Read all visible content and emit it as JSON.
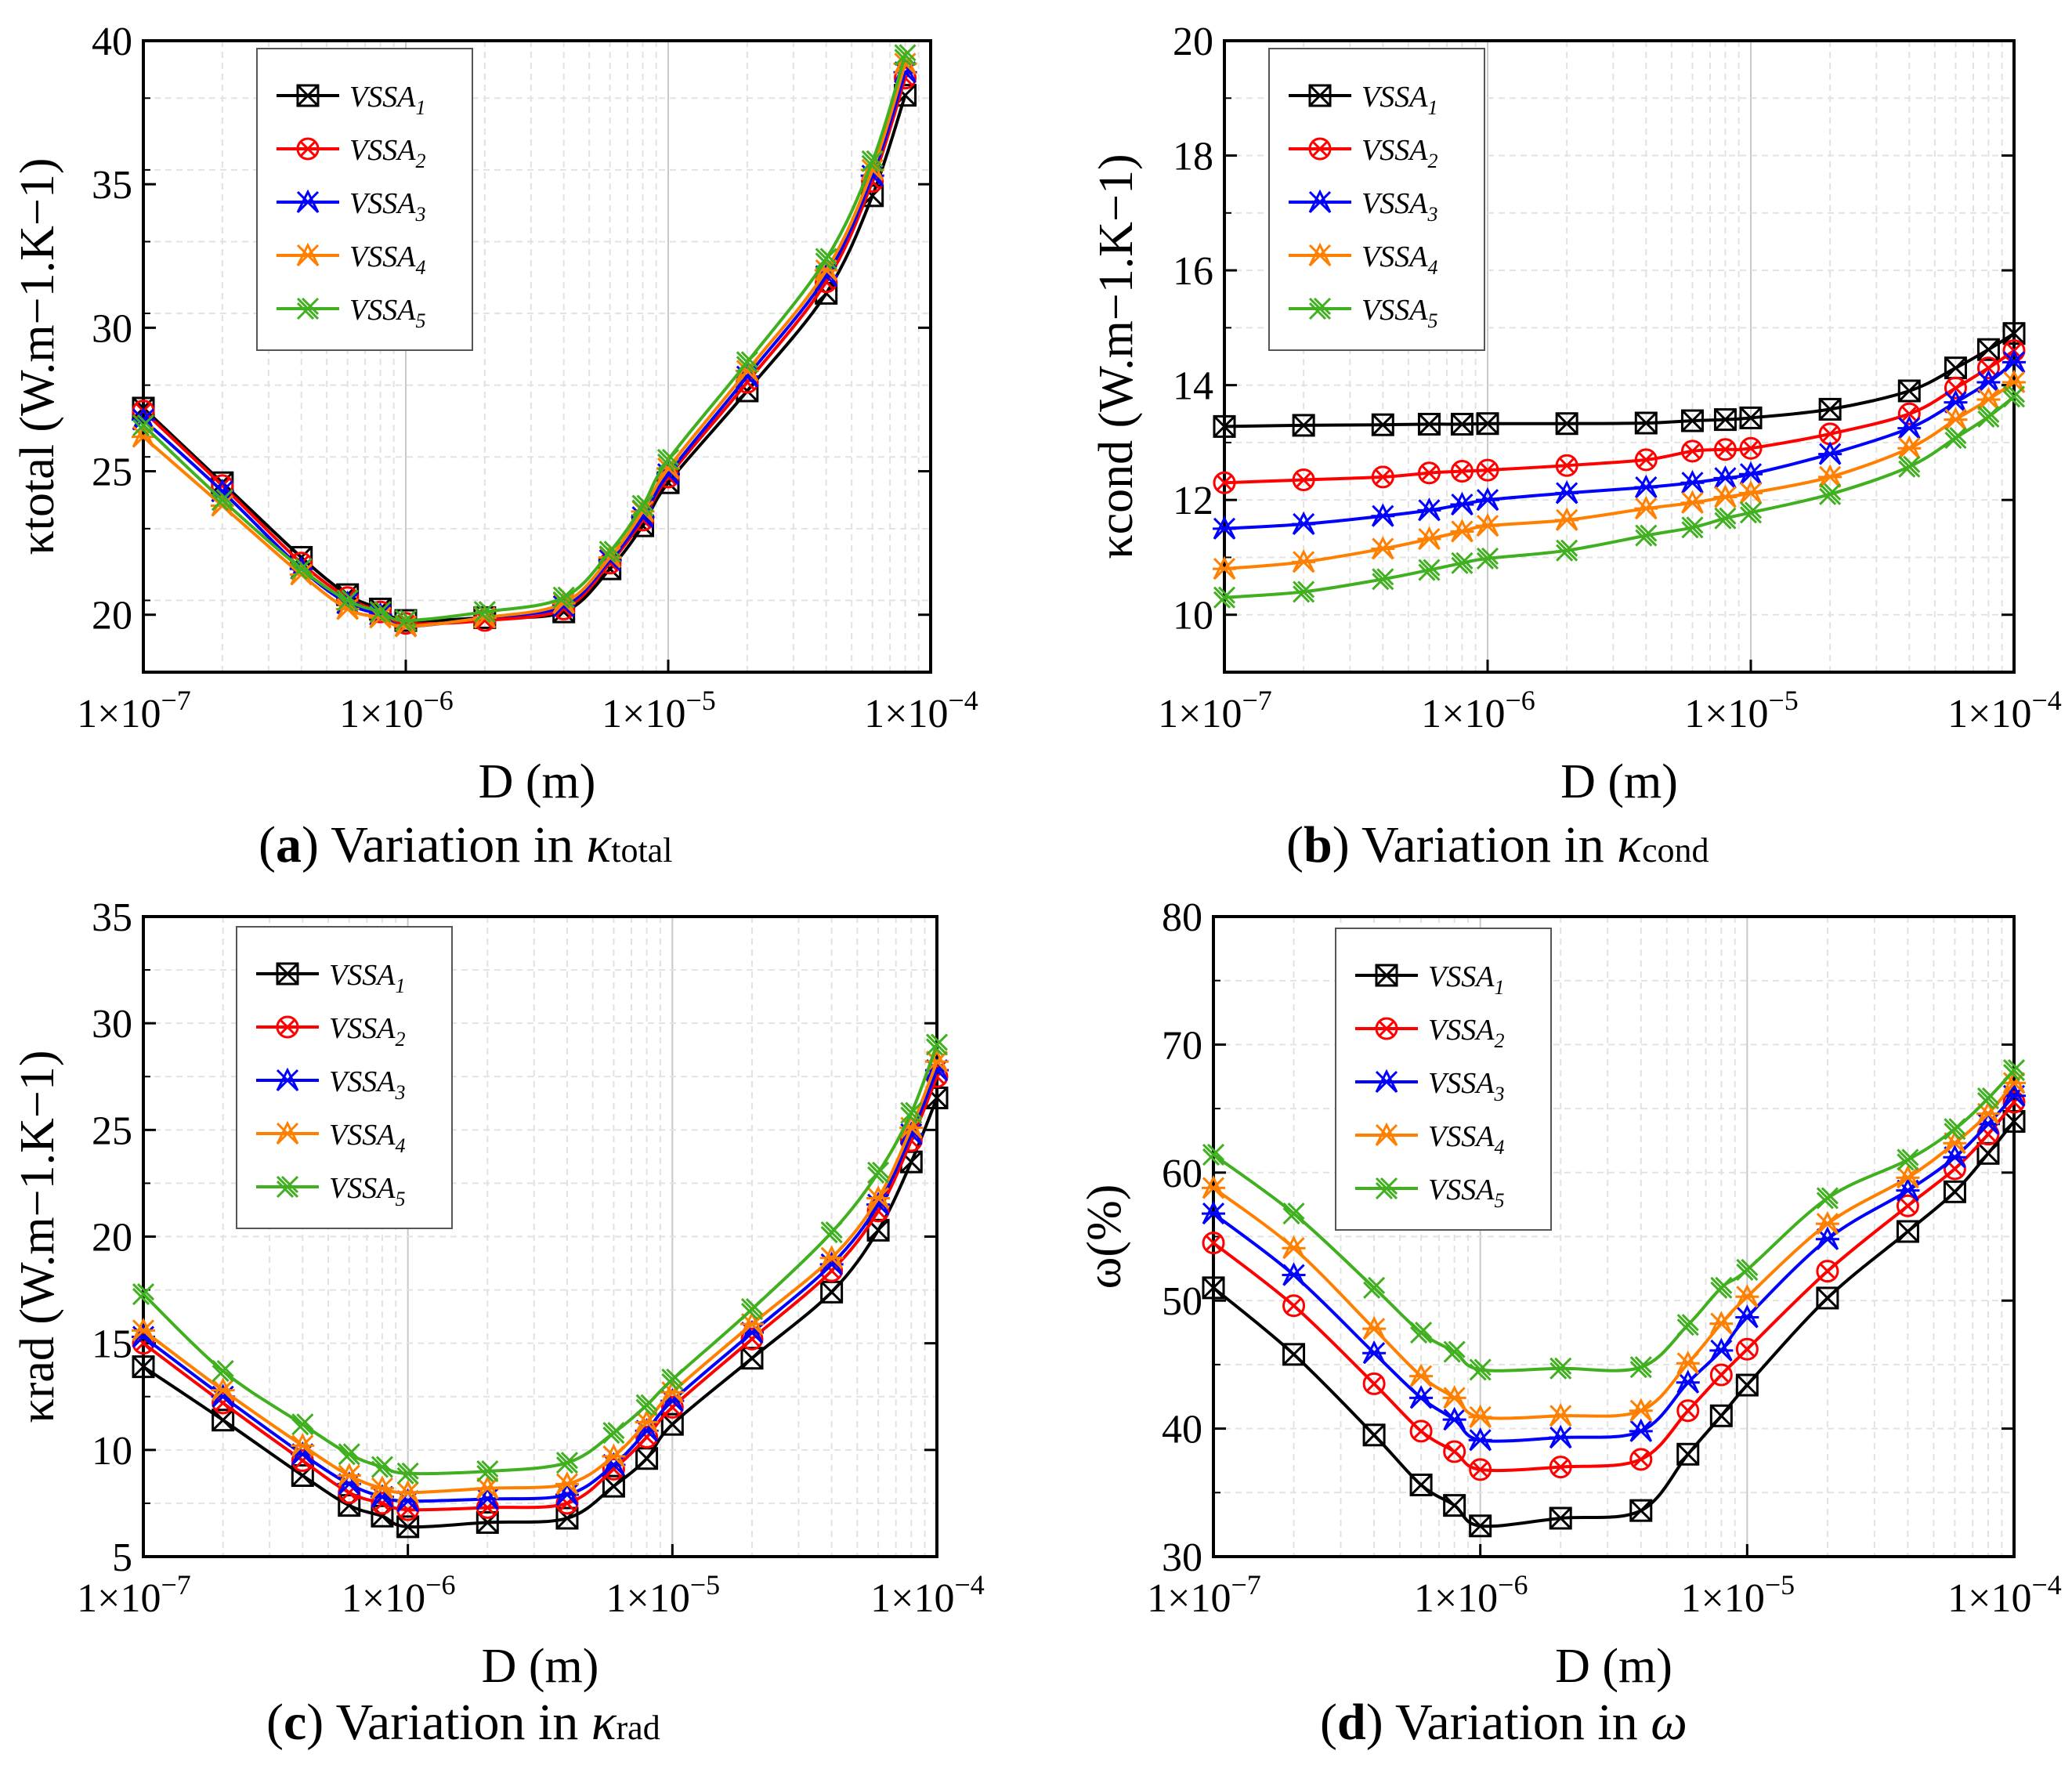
{
  "figure_captions": [
    {
      "label": "a",
      "text": " Variation in ",
      "symbol": "κ",
      "sub": "total"
    },
    {
      "label": "b",
      "text": " Variation in ",
      "symbol": "κ",
      "sub": "cond"
    },
    {
      "label": "c",
      "text": " Variation in ",
      "symbol": "κ",
      "sub": "rad"
    },
    {
      "label": "d",
      "text": " Variation in ",
      "symbol": "ω",
      "sub": ""
    }
  ],
  "series_styles": [
    {
      "name": "VSSA",
      "sub": "1",
      "color": "#000000",
      "marker": "boxx"
    },
    {
      "name": "VSSA",
      "sub": "2",
      "color": "#ff0000",
      "marker": "circx"
    },
    {
      "name": "VSSA",
      "sub": "3",
      "color": "#0000ff",
      "marker": "star"
    },
    {
      "name": "VSSA",
      "sub": "4",
      "color": "#ff8000",
      "marker": "star"
    },
    {
      "name": "VSSA",
      "sub": "5",
      "color": "#40b020",
      "marker": "xx"
    }
  ],
  "chart_data": [
    {
      "type": "line",
      "panel": "a",
      "xlabel": "D (m)",
      "ylabel": "κtotal (W.m−1.K−1)",
      "xscale": "log",
      "xlim": [
        1e-07,
        0.0001
      ],
      "ylim": [
        18,
        40
      ],
      "yticks": [
        20,
        25,
        30,
        35,
        40
      ],
      "xtick_labels": [
        "1×10",
        "1×10",
        "1×10",
        "1×10"
      ],
      "xtick_exps": [
        "−7",
        "−6",
        "−5",
        "−4"
      ],
      "legend_position": "top-left",
      "x": [
        1e-07,
        2e-07,
        4e-07,
        6e-07,
        8e-07,
        1e-06,
        2e-06,
        4e-06,
        6e-06,
        8e-06,
        1e-05,
        2e-05,
        4e-05,
        6e-05,
        8e-05
      ],
      "series": [
        {
          "name": "VSSA1",
          "values": [
            27.2,
            24.6,
            22.0,
            20.7,
            20.2,
            19.8,
            19.9,
            20.1,
            21.6,
            23.1,
            24.6,
            27.8,
            31.2,
            34.6,
            38.1
          ]
        },
        {
          "name": "VSSA2",
          "values": [
            27.1,
            24.5,
            21.8,
            20.6,
            20.1,
            19.7,
            19.8,
            20.2,
            21.8,
            23.3,
            24.8,
            28.1,
            31.6,
            35.1,
            38.7
          ]
        },
        {
          "name": "VSSA3",
          "values": [
            26.8,
            24.3,
            21.6,
            20.4,
            20.0,
            19.6,
            19.9,
            20.3,
            21.9,
            23.4,
            24.9,
            28.3,
            31.8,
            35.3,
            38.9
          ]
        },
        {
          "name": "VSSA4",
          "values": [
            26.2,
            23.8,
            21.4,
            20.2,
            19.9,
            19.6,
            19.9,
            20.4,
            22.0,
            23.6,
            25.1,
            28.5,
            32.0,
            35.5,
            39.2
          ]
        },
        {
          "name": "VSSA5",
          "values": [
            26.6,
            24.0,
            21.6,
            20.5,
            20.1,
            19.8,
            20.1,
            20.6,
            22.2,
            23.8,
            25.4,
            28.8,
            32.4,
            35.8,
            39.5
          ]
        }
      ]
    },
    {
      "type": "line",
      "panel": "b",
      "xlabel": "D (m)",
      "ylabel": "κcond (W.m−1.K−1)",
      "xscale": "log",
      "xlim": [
        1e-07,
        0.0001
      ],
      "ylim": [
        9,
        20
      ],
      "yticks": [
        10,
        12,
        14,
        16,
        18,
        20
      ],
      "xtick_labels": [
        "1×10",
        "1×10",
        "1×10",
        "1×10"
      ],
      "xtick_exps": [
        "−7",
        "−6",
        "−5",
        "−4"
      ],
      "legend_position": "top-left",
      "x": [
        1e-07,
        2e-07,
        4e-07,
        6e-07,
        8e-07,
        1e-06,
        2e-06,
        4e-06,
        6e-06,
        8e-06,
        1e-05,
        2e-05,
        4e-05,
        6e-05,
        8e-05,
        0.0001
      ],
      "series": [
        {
          "name": "VSSA1",
          "values": [
            13.28,
            13.3,
            13.31,
            13.32,
            13.32,
            13.33,
            13.33,
            13.34,
            13.38,
            13.4,
            13.43,
            13.58,
            13.9,
            14.3,
            14.62,
            14.9
          ]
        },
        {
          "name": "VSSA2",
          "values": [
            12.3,
            12.35,
            12.4,
            12.47,
            12.5,
            12.52,
            12.6,
            12.7,
            12.85,
            12.88,
            12.9,
            13.15,
            13.5,
            13.95,
            14.3,
            14.6
          ]
        },
        {
          "name": "VSSA3",
          "values": [
            11.5,
            11.58,
            11.72,
            11.82,
            11.92,
            12.0,
            12.12,
            12.22,
            12.3,
            12.38,
            12.45,
            12.8,
            13.25,
            13.7,
            14.05,
            14.4
          ]
        },
        {
          "name": "VSSA4",
          "values": [
            10.8,
            10.92,
            11.15,
            11.32,
            11.45,
            11.55,
            11.65,
            11.85,
            11.95,
            12.05,
            12.12,
            12.4,
            12.9,
            13.4,
            13.75,
            14.05
          ]
        },
        {
          "name": "VSSA5",
          "values": [
            10.3,
            10.4,
            10.62,
            10.78,
            10.9,
            10.98,
            11.12,
            11.38,
            11.52,
            11.68,
            11.78,
            12.1,
            12.58,
            13.08,
            13.45,
            13.8
          ]
        }
      ]
    },
    {
      "type": "line",
      "panel": "c",
      "xlabel": "D (m)",
      "ylabel": "κrad (W.m−1.K−1)",
      "xscale": "log",
      "xlim": [
        1e-07,
        0.0001
      ],
      "ylim": [
        5,
        35
      ],
      "yticks": [
        5,
        10,
        15,
        20,
        25,
        30,
        35
      ],
      "xtick_labels": [
        "1×10",
        "1×10",
        "1×10",
        "1×10"
      ],
      "xtick_exps": [
        "−7",
        "−6",
        "−5",
        "−4"
      ],
      "legend_position": "top-left",
      "x": [
        1e-07,
        2e-07,
        4e-07,
        6e-07,
        8e-07,
        1e-06,
        2e-06,
        4e-06,
        6e-06,
        8e-06,
        1e-05,
        2e-05,
        4e-05,
        6e-05,
        8e-05,
        0.0001
      ],
      "series": [
        {
          "name": "VSSA1",
          "values": [
            13.9,
            11.4,
            8.8,
            7.4,
            6.9,
            6.4,
            6.6,
            6.8,
            8.3,
            9.6,
            11.2,
            14.3,
            17.4,
            20.3,
            23.5,
            26.5
          ]
        },
        {
          "name": "VSSA2",
          "values": [
            15.0,
            12.2,
            9.5,
            8.0,
            7.5,
            7.2,
            7.3,
            7.5,
            9.1,
            10.6,
            12.0,
            15.2,
            18.4,
            21.2,
            24.5,
            27.5
          ]
        },
        {
          "name": "VSSA3",
          "values": [
            15.3,
            12.5,
            9.8,
            8.4,
            7.8,
            7.6,
            7.7,
            7.9,
            9.3,
            10.9,
            12.3,
            15.5,
            18.7,
            21.5,
            24.8,
            27.8
          ]
        },
        {
          "name": "VSSA4",
          "values": [
            15.6,
            12.8,
            10.2,
            8.8,
            8.2,
            8.0,
            8.2,
            8.4,
            9.7,
            11.3,
            12.7,
            15.9,
            19.0,
            21.8,
            25.1,
            28.2
          ]
        },
        {
          "name": "VSSA5",
          "values": [
            17.3,
            13.7,
            11.2,
            9.8,
            9.2,
            8.9,
            9.0,
            9.4,
            10.8,
            12.1,
            13.3,
            16.6,
            20.2,
            23.0,
            25.8,
            29.0
          ]
        }
      ]
    },
    {
      "type": "line",
      "panel": "d",
      "xlabel": "D (m)",
      "ylabel": "ω(%)",
      "xscale": "log",
      "xlim": [
        1e-07,
        0.0001
      ],
      "ylim": [
        30,
        80
      ],
      "yticks": [
        30,
        40,
        50,
        60,
        70,
        80
      ],
      "xtick_labels": [
        "1×10",
        "1×10",
        "1×10",
        "1×10"
      ],
      "xtick_exps": [
        "−7",
        "−6",
        "−5",
        "−4"
      ],
      "legend_position": "top-left",
      "x": [
        1e-07,
        2e-07,
        4e-07,
        6e-07,
        8e-07,
        1e-06,
        2e-06,
        4e-06,
        6e-06,
        8e-06,
        1e-05,
        2e-05,
        4e-05,
        6e-05,
        8e-05,
        0.0001
      ],
      "series": [
        {
          "name": "VSSA1",
          "values": [
            51.0,
            45.8,
            39.5,
            35.6,
            34.0,
            32.4,
            33.0,
            33.6,
            38.0,
            41.0,
            43.4,
            50.2,
            55.4,
            58.5,
            61.5,
            64.0
          ]
        },
        {
          "name": "VSSA2",
          "values": [
            54.5,
            49.6,
            43.5,
            39.8,
            38.2,
            36.8,
            37.0,
            37.6,
            41.4,
            44.2,
            46.2,
            52.3,
            57.4,
            60.3,
            63.0,
            65.5
          ]
        },
        {
          "name": "VSSA3",
          "values": [
            56.8,
            52.0,
            45.9,
            42.4,
            40.7,
            39.1,
            39.3,
            39.8,
            43.6,
            46.1,
            48.7,
            54.8,
            58.6,
            61.2,
            63.8,
            66.0
          ]
        },
        {
          "name": "VSSA4",
          "values": [
            58.8,
            54.1,
            47.8,
            44.1,
            42.4,
            40.9,
            41.0,
            41.4,
            45.1,
            48.2,
            50.3,
            56.0,
            59.6,
            62.3,
            64.6,
            67.0
          ]
        },
        {
          "name": "VSSA5",
          "values": [
            61.4,
            56.8,
            51.0,
            47.5,
            46.0,
            44.6,
            44.7,
            44.8,
            48.1,
            51.0,
            52.4,
            58.0,
            61.0,
            63.4,
            65.8,
            68.0
          ]
        }
      ]
    }
  ]
}
